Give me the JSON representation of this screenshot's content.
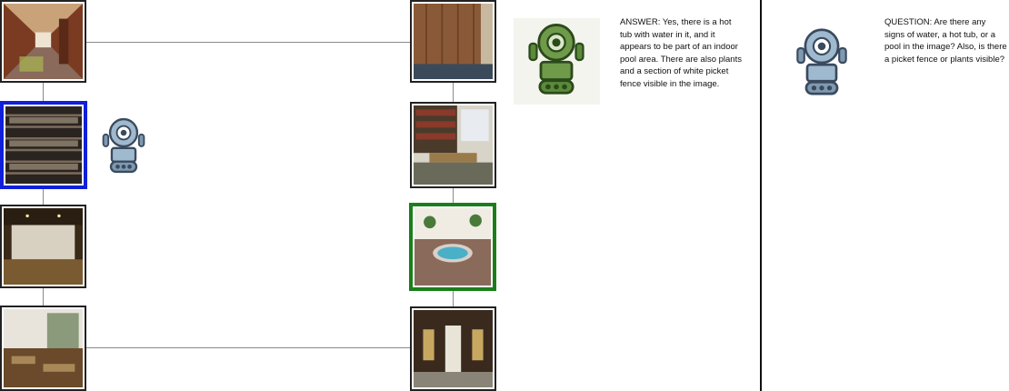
{
  "answer": {
    "prefix": "ANSWER:",
    "text": "Yes, there is a hot tub with water in it, and it appears to be part of an indoor pool area. There are also plants and a section of white picket fence visible in the image."
  },
  "question": {
    "prefix": "QUESTION:",
    "text": "Are there any signs of water, a hot tub, or a pool in the image? Also, is there a picket fence or plants visible?"
  },
  "colors": {
    "selected_agent": "#1020d8",
    "selected_target": "#1a7f1a",
    "robot_blue": "#9fb9cf",
    "robot_green": "#6f9a4a"
  },
  "icons": {
    "agent": "robot-icon",
    "answerer": "green-robot-icon",
    "questioner": "robot-icon"
  }
}
